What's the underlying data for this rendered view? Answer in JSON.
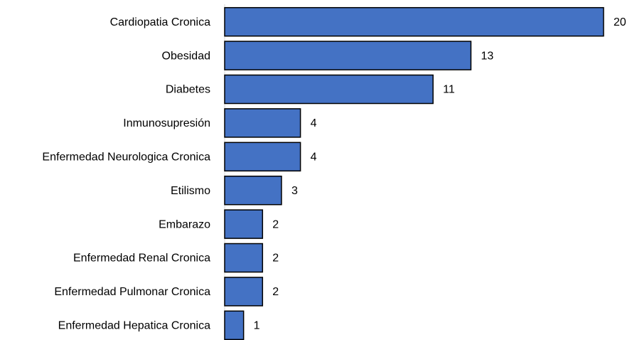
{
  "chart_data": {
    "type": "hbar",
    "categories": [
      "Cardiopatia Cronica",
      "Obesidad",
      "Diabetes",
      "Inmunosupresión",
      "Enfermedad Neurologica Cronica",
      "Etilismo",
      "Embarazo",
      "Enfermedad Renal Cronica",
      "Enfermedad Pulmonar Cronica",
      "Enfermedad Hepatica Cronica"
    ],
    "values": [
      20,
      13,
      11,
      4,
      4,
      3,
      2,
      2,
      2,
      1
    ],
    "color": "#4472c4"
  }
}
